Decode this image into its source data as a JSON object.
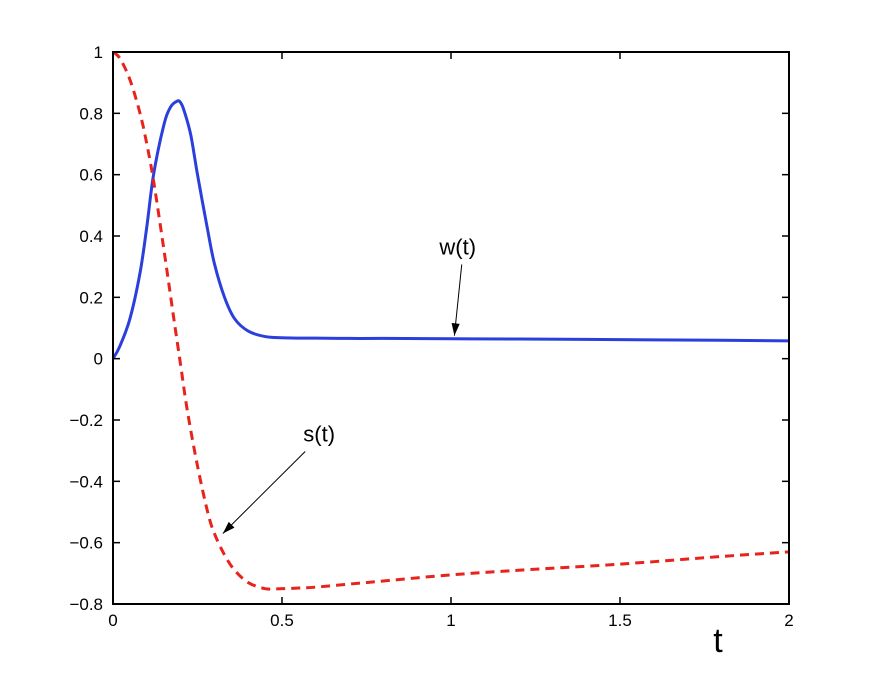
{
  "chart_data": {
    "type": "line",
    "title": "",
    "xlabel": "t",
    "ylabel": "",
    "xlim": [
      0,
      2
    ],
    "ylim": [
      -0.8,
      1
    ],
    "xticks": [
      0,
      0.5,
      1,
      1.5,
      2
    ],
    "xtick_labels": [
      "0",
      "0.5",
      "1",
      "1.5",
      "2"
    ],
    "yticks": [
      -0.8,
      -0.6,
      -0.4,
      -0.2,
      0,
      0.2,
      0.4,
      0.6,
      0.8,
      1
    ],
    "ytick_labels": [
      "−0.8",
      "−0.6",
      "−0.4",
      "−0.2",
      "0",
      "0.2",
      "0.4",
      "0.6",
      "0.8",
      "1"
    ],
    "grid": false,
    "series": [
      {
        "label": "w(t)",
        "color": "#2a3fdc",
        "style": "solid",
        "x": [
          0,
          0.02,
          0.05,
          0.08,
          0.1,
          0.12,
          0.15,
          0.17,
          0.19,
          0.2,
          0.21,
          0.23,
          0.25,
          0.28,
          0.3,
          0.33,
          0.36,
          0.4,
          0.45,
          0.5,
          0.55,
          0.6,
          0.7,
          0.8,
          1.0,
          1.2,
          1.5,
          1.8,
          2.0
        ],
        "y": [
          0.0,
          0.04,
          0.13,
          0.28,
          0.43,
          0.6,
          0.76,
          0.82,
          0.84,
          0.835,
          0.81,
          0.73,
          0.6,
          0.42,
          0.31,
          0.2,
          0.13,
          0.09,
          0.072,
          0.068,
          0.067,
          0.067,
          0.066,
          0.066,
          0.065,
          0.064,
          0.062,
          0.06,
          0.058
        ]
      },
      {
        "label": "s(t)",
        "color": "#e8231c",
        "style": "dashed",
        "x": [
          0,
          0.02,
          0.05,
          0.08,
          0.1,
          0.12,
          0.15,
          0.18,
          0.2,
          0.22,
          0.25,
          0.28,
          0.3,
          0.33,
          0.36,
          0.4,
          0.45,
          0.5,
          0.55,
          0.6,
          0.7,
          0.8,
          1.0,
          1.2,
          1.5,
          1.8,
          2.0
        ],
        "y": [
          1.0,
          0.98,
          0.91,
          0.8,
          0.7,
          0.58,
          0.36,
          0.13,
          -0.02,
          -0.17,
          -0.35,
          -0.5,
          -0.57,
          -0.64,
          -0.69,
          -0.73,
          -0.75,
          -0.75,
          -0.748,
          -0.745,
          -0.735,
          -0.725,
          -0.705,
          -0.69,
          -0.67,
          -0.645,
          -0.63
        ]
      }
    ],
    "annotations": [
      {
        "text": "w(t)",
        "text_at": [
          1.02,
          0.34
        ],
        "arrow_to": [
          1.01,
          0.075
        ]
      },
      {
        "text": "s(t)",
        "text_at": [
          0.61,
          -0.27
        ],
        "arrow_to": [
          0.325,
          -0.57
        ]
      }
    ]
  }
}
